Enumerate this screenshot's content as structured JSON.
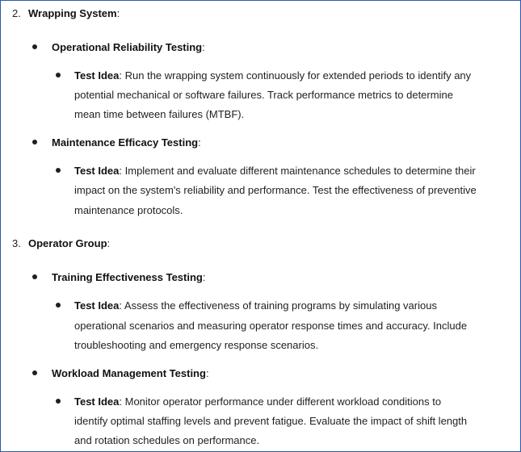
{
  "sections": [
    {
      "number": "2.",
      "title": "Wrapping System",
      "items": [
        {
          "heading": "Operational Reliability Testing",
          "idea_label": "Test Idea",
          "lines": [
            "Run the wrapping system continuously for extended periods to identify any",
            "potential mechanical or software failures. Track performance metrics to determine",
            "mean time between failures (MTBF)."
          ]
        },
        {
          "heading": "Maintenance Efficacy Testing",
          "idea_label": "Test Idea",
          "lines": [
            "Implement and evaluate different maintenance schedules to determine their",
            "impact on the system's reliability and performance. Test the effectiveness of preventive",
            "maintenance protocols."
          ]
        }
      ]
    },
    {
      "number": "3.",
      "title": "Operator Group",
      "items": [
        {
          "heading": "Training Effectiveness Testing",
          "idea_label": "Test Idea",
          "lines": [
            "Assess the effectiveness of training programs by simulating various",
            "operational scenarios and measuring operator response times and accuracy. Include",
            "troubleshooting and emergency response scenarios."
          ]
        },
        {
          "heading": "Workload Management Testing",
          "idea_label": "Test Idea",
          "lines": [
            "Monitor operator performance under different workload conditions to",
            "identify optimal staffing levels and prevent fatigue. Evaluate the impact of shift length",
            "and rotation schedules on performance."
          ]
        }
      ]
    }
  ]
}
